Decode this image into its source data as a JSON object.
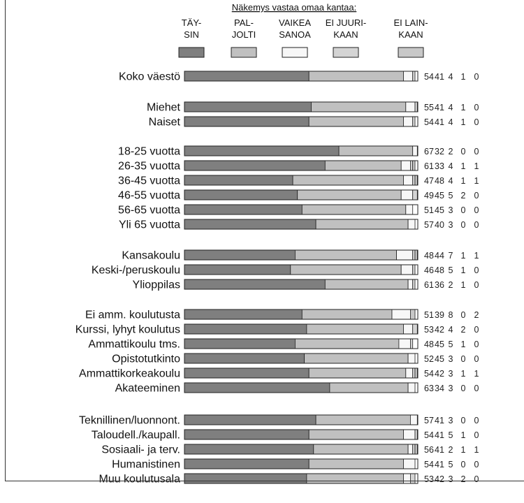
{
  "chart_data": {
    "type": "bar",
    "stacked": true,
    "orientation": "horizontal",
    "legend_title": "Näkemys vastaa omaa kantaa:",
    "series": [
      {
        "name": "TÄY-\nSIN",
        "color": "#7f7f7f"
      },
      {
        "name": "PAL-\nJOLTI",
        "color": "#c0c0c0"
      },
      {
        "name": "VAIKEA\nSANOA",
        "color": "#f7f7f7"
      },
      {
        "name": "EI JUURI-\nKAAN",
        "color": "#d4d4d4"
      },
      {
        "name": "EI LAIN-\nKAAN",
        "color": "#c8c8c8"
      }
    ],
    "rows": [
      {
        "label": "Koko väestö",
        "values": [
          54,
          41,
          4,
          1,
          0
        ]
      },
      {
        "label": "Miehet",
        "values": [
          55,
          41,
          4,
          1,
          0
        ]
      },
      {
        "label": "Naiset",
        "values": [
          54,
          41,
          4,
          1,
          0
        ]
      },
      {
        "label": "18-25 vuotta",
        "values": [
          67,
          32,
          2,
          0,
          0
        ]
      },
      {
        "label": "26-35 vuotta",
        "values": [
          61,
          33,
          4,
          1,
          1
        ]
      },
      {
        "label": "36-45 vuotta",
        "values": [
          47,
          48,
          4,
          1,
          1
        ]
      },
      {
        "label": "46-55 vuotta",
        "values": [
          49,
          45,
          5,
          2,
          0
        ]
      },
      {
        "label": "56-65 vuotta",
        "values": [
          51,
          45,
          3,
          0,
          0
        ]
      },
      {
        "label": "Yli 65 vuotta",
        "values": [
          57,
          40,
          3,
          0,
          0
        ]
      },
      {
        "label": "Kansakoulu",
        "values": [
          48,
          44,
          7,
          1,
          1
        ]
      },
      {
        "label": "Keski-/peruskoulu",
        "values": [
          46,
          48,
          5,
          1,
          0
        ]
      },
      {
        "label": "Ylioppilas",
        "values": [
          61,
          36,
          2,
          1,
          0
        ]
      },
      {
        "label": "Ei amm. koulutusta",
        "values": [
          51,
          39,
          8,
          0,
          2
        ]
      },
      {
        "label": "Kurssi, lyhyt koulutus",
        "values": [
          53,
          42,
          4,
          2,
          0
        ]
      },
      {
        "label": "Ammattikoulu tms.",
        "values": [
          48,
          45,
          5,
          1,
          0
        ]
      },
      {
        "label": "Opistotutkinto",
        "values": [
          52,
          45,
          3,
          0,
          0
        ]
      },
      {
        "label": "Ammattikorkeakoulu",
        "values": [
          54,
          42,
          3,
          1,
          1
        ]
      },
      {
        "label": "Akateeminen",
        "values": [
          63,
          34,
          3,
          0,
          0
        ]
      },
      {
        "label": "Teknillinen/luonnont.",
        "values": [
          57,
          41,
          3,
          0,
          0
        ]
      },
      {
        "label": "Taloudell./kaupall.",
        "values": [
          54,
          41,
          5,
          1,
          0
        ]
      },
      {
        "label": "Sosiaali- ja terv.",
        "values": [
          56,
          41,
          2,
          1,
          1
        ]
      },
      {
        "label": "Humanistinen",
        "values": [
          54,
          41,
          5,
          0,
          0
        ]
      },
      {
        "label": "Muu koulutusala",
        "values": [
          53,
          42,
          3,
          2,
          0
        ]
      }
    ]
  }
}
